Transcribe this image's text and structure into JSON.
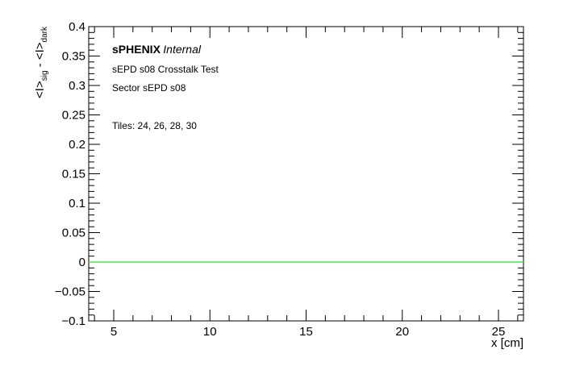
{
  "chart_data": {
    "type": "line",
    "xlabel": "x [cm]",
    "ylabel": {
      "a": "<I>",
      "a_sub": "sig",
      "sep": " - ",
      "b": "<I>",
      "b_sub": "dark"
    },
    "xlim": [
      3.7,
      26.3
    ],
    "ylim": [
      -0.1,
      0.4
    ],
    "x_ticks": [
      5,
      10,
      15,
      20,
      25
    ],
    "x_tick_labels": [
      "5",
      "10",
      "15",
      "20",
      "25"
    ],
    "y_ticks": [
      -0.1,
      -0.05,
      0,
      0.05,
      0.1,
      0.15,
      0.2,
      0.25,
      0.3,
      0.35,
      0.4
    ],
    "y_tick_labels": [
      "−0.1",
      "−0.05",
      "0",
      "0.05",
      "0.1",
      "0.15",
      "0.2",
      "0.25",
      "0.3",
      "0.35",
      "0.4"
    ],
    "grid": false,
    "series": [
      {
        "color": "#55dd55",
        "x": [
          3.7,
          26.3
        ],
        "y": [
          0,
          0
        ]
      }
    ],
    "annotations": {
      "experiment": "sPHENIX",
      "status": "Internal",
      "line1": "sEPD s08 Crosstalk Test",
      "line2": "Sector sEPD s08",
      "line3": "Tiles: 24, 26, 28, 30"
    }
  }
}
